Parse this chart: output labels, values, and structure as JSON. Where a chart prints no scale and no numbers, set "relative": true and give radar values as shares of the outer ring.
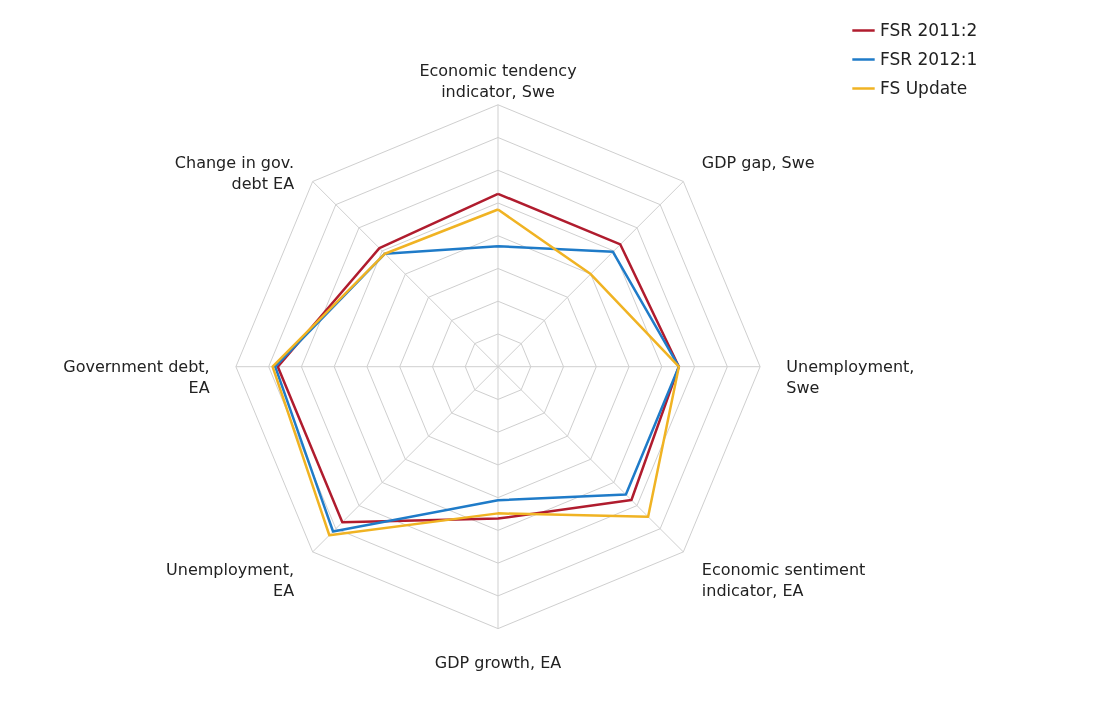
{
  "chart_data": {
    "type": "radar",
    "relative": true,
    "grid": true,
    "legend": "top right",
    "line_style": "solid",
    "categories": [
      "Economic tendency indicator, Swe",
      "GDP gap, Swe",
      "Unemployment, Swe",
      "Economic sentiment indicator, EA",
      "GDP growth, EA",
      "Unemployment, EA",
      "Government debt, EA",
      "Change in gov. debt EA"
    ],
    "series": [
      {
        "name": "FSR 2011:2",
        "color": "#b01c2e",
        "values": [
          0.66,
          0.66,
          0.69,
          0.72,
          0.58,
          0.84,
          0.84,
          0.64
        ]
      },
      {
        "name": "FSR 2012:1",
        "color": "#1f7bc8",
        "values": [
          0.46,
          0.62,
          0.69,
          0.69,
          0.51,
          0.89,
          0.85,
          0.61
        ]
      },
      {
        "name": "FS Update",
        "color": "#f0b323",
        "values": [
          0.6,
          0.5,
          0.69,
          0.81,
          0.56,
          0.91,
          0.86,
          0.61
        ]
      }
    ]
  }
}
